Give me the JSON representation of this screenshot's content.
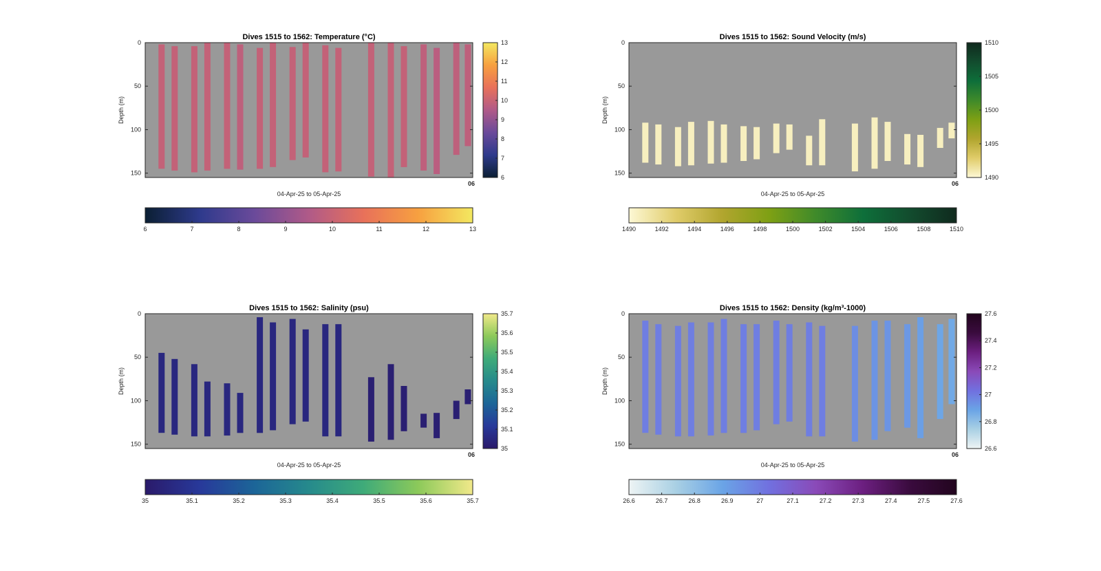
{
  "chart_data": [
    {
      "type": "heatmap",
      "title": "Dives 1515 to 1562: Temperature (°C)",
      "xlabel": "04-Apr-25 to 05-Apr-25",
      "ylabel": "Depth (m)",
      "x_tick_labels": [
        "06"
      ],
      "y_ticks": [
        0,
        50,
        100,
        150
      ],
      "ylim": [
        0,
        155
      ],
      "colorbar_right_ticks": [
        6,
        7,
        8,
        9,
        10,
        11,
        12,
        13
      ],
      "colorbar_bottom_ticks": [
        6,
        7,
        8,
        9,
        10,
        11,
        12,
        13
      ],
      "clim": [
        6,
        13
      ],
      "colormap": [
        "#0b1f33",
        "#2e3a8c",
        "#6a4a9a",
        "#b05a88",
        "#e8715a",
        "#f7a040",
        "#f3e860"
      ],
      "background_color": "#999999",
      "columns": [
        {
          "pos": 0.05,
          "top": 2,
          "bottom": 145,
          "value": 9.9
        },
        {
          "pos": 0.09,
          "top": 4,
          "bottom": 147,
          "value": 9.9
        },
        {
          "pos": 0.15,
          "top": 4,
          "bottom": 149,
          "value": 9.9
        },
        {
          "pos": 0.19,
          "top": 0,
          "bottom": 147,
          "value": 9.9
        },
        {
          "pos": 0.25,
          "top": 0,
          "bottom": 145,
          "value": 9.9
        },
        {
          "pos": 0.29,
          "top": 2,
          "bottom": 146,
          "value": 9.8
        },
        {
          "pos": 0.35,
          "top": 6,
          "bottom": 145,
          "value": 9.9
        },
        {
          "pos": 0.39,
          "top": 0,
          "bottom": 143,
          "value": 9.9
        },
        {
          "pos": 0.45,
          "top": 5,
          "bottom": 135,
          "value": 9.9
        },
        {
          "pos": 0.49,
          "top": 0,
          "bottom": 132,
          "value": 9.9
        },
        {
          "pos": 0.55,
          "top": 3,
          "bottom": 149,
          "value": 9.9
        },
        {
          "pos": 0.59,
          "top": 6,
          "bottom": 148,
          "value": 9.9
        },
        {
          "pos": 0.69,
          "top": 0,
          "bottom": 154,
          "value": 9.9
        },
        {
          "pos": 0.75,
          "top": 0,
          "bottom": 155,
          "value": 9.9
        },
        {
          "pos": 0.79,
          "top": 4,
          "bottom": 143,
          "value": 9.9
        },
        {
          "pos": 0.85,
          "top": 2,
          "bottom": 147,
          "value": 9.8
        },
        {
          "pos": 0.89,
          "top": 6,
          "bottom": 151,
          "value": 9.7
        },
        {
          "pos": 0.95,
          "top": 0,
          "bottom": 129,
          "value": 9.8
        },
        {
          "pos": 0.985,
          "top": 2,
          "bottom": 119,
          "value": 9.8
        }
      ]
    },
    {
      "type": "heatmap",
      "title": "Dives 1515 to 1562: Sound Velocity (m/s)",
      "xlabel": "04-Apr-25 to 05-Apr-25",
      "ylabel": "Depth (m)",
      "x_tick_labels": [
        "06"
      ],
      "y_ticks": [
        0,
        50,
        100,
        150
      ],
      "ylim": [
        0,
        155
      ],
      "colorbar_right_ticks": [
        1490,
        1495,
        1500,
        1505,
        1510
      ],
      "colorbar_bottom_ticks": [
        1490,
        1492,
        1494,
        1496,
        1498,
        1500,
        1502,
        1504,
        1506,
        1508,
        1510
      ],
      "clim": [
        1490,
        1510
      ],
      "colormap": [
        "#fdf8d5",
        "#e0cc6a",
        "#b1a52e",
        "#7ea014",
        "#3f8a2a",
        "#0e6f3a",
        "#124c2e",
        "#102a1e"
      ],
      "background_color": "#999999",
      "columns": [
        {
          "pos": 0.05,
          "top": 92,
          "bottom": 138,
          "value": 1490.6
        },
        {
          "pos": 0.09,
          "top": 94,
          "bottom": 140,
          "value": 1490.6
        },
        {
          "pos": 0.15,
          "top": 97,
          "bottom": 142,
          "value": 1490.6
        },
        {
          "pos": 0.19,
          "top": 91,
          "bottom": 141,
          "value": 1490.6
        },
        {
          "pos": 0.25,
          "top": 90,
          "bottom": 139,
          "value": 1490.6
        },
        {
          "pos": 0.29,
          "top": 94,
          "bottom": 138,
          "value": 1490.6
        },
        {
          "pos": 0.35,
          "top": 96,
          "bottom": 136,
          "value": 1490.6
        },
        {
          "pos": 0.39,
          "top": 97,
          "bottom": 134,
          "value": 1490.6
        },
        {
          "pos": 0.45,
          "top": 93,
          "bottom": 127,
          "value": 1490.6
        },
        {
          "pos": 0.49,
          "top": 94,
          "bottom": 123,
          "value": 1490.6
        },
        {
          "pos": 0.55,
          "top": 107,
          "bottom": 141,
          "value": 1490.6
        },
        {
          "pos": 0.59,
          "top": 88,
          "bottom": 141,
          "value": 1490.6
        },
        {
          "pos": 0.69,
          "top": 93,
          "bottom": 148,
          "value": 1490.6
        },
        {
          "pos": 0.75,
          "top": 86,
          "bottom": 145,
          "value": 1490.6
        },
        {
          "pos": 0.79,
          "top": 91,
          "bottom": 136,
          "value": 1490.6
        },
        {
          "pos": 0.85,
          "top": 105,
          "bottom": 140,
          "value": 1490.6
        },
        {
          "pos": 0.89,
          "top": 106,
          "bottom": 143,
          "value": 1490.6
        },
        {
          "pos": 0.95,
          "top": 98,
          "bottom": 121,
          "value": 1490.6
        },
        {
          "pos": 0.985,
          "top": 92,
          "bottom": 110,
          "value": 1490.6
        }
      ]
    },
    {
      "type": "heatmap",
      "title": "Dives 1515 to 1562: Salinity (psu)",
      "xlabel": "04-Apr-25 to 05-Apr-25",
      "ylabel": "Depth (m)",
      "x_tick_labels": [
        "06"
      ],
      "y_ticks": [
        0,
        50,
        100,
        150
      ],
      "ylim": [
        0,
        155
      ],
      "colorbar_right_ticks": [
        35,
        35.1,
        35.2,
        35.3,
        35.4,
        35.5,
        35.6,
        35.7
      ],
      "colorbar_bottom_ticks": [
        35,
        35.1,
        35.2,
        35.3,
        35.4,
        35.5,
        35.6,
        35.7
      ],
      "clim": [
        35,
        35.7
      ],
      "colormap": [
        "#2a1a6a",
        "#28399a",
        "#1c6598",
        "#268a8c",
        "#3fab79",
        "#8cc95a",
        "#f1e98a"
      ],
      "background_color": "#999999",
      "columns": [
        {
          "pos": 0.05,
          "top": 45,
          "bottom": 137,
          "value": 35.05
        },
        {
          "pos": 0.09,
          "top": 52,
          "bottom": 139,
          "value": 35.05
        },
        {
          "pos": 0.15,
          "top": 58,
          "bottom": 141,
          "value": 35.05
        },
        {
          "pos": 0.19,
          "top": 78,
          "bottom": 141,
          "value": 35.05
        },
        {
          "pos": 0.25,
          "top": 80,
          "bottom": 140,
          "value": 35.05
        },
        {
          "pos": 0.29,
          "top": 91,
          "bottom": 137,
          "value": 35.05
        },
        {
          "pos": 0.35,
          "top": 4,
          "bottom": 137,
          "value": 35.05
        },
        {
          "pos": 0.39,
          "top": 10,
          "bottom": 134,
          "value": 35.05
        },
        {
          "pos": 0.45,
          "top": 6,
          "bottom": 127,
          "value": 35.05
        },
        {
          "pos": 0.49,
          "top": 18,
          "bottom": 124,
          "value": 35.05
        },
        {
          "pos": 0.55,
          "top": 12,
          "bottom": 141,
          "value": 35.05
        },
        {
          "pos": 0.59,
          "top": 12,
          "bottom": 141,
          "value": 35.05
        },
        {
          "pos": 0.69,
          "top": 73,
          "bottom": 147,
          "value": 35.02
        },
        {
          "pos": 0.75,
          "top": 58,
          "bottom": 145,
          "value": 35.02
        },
        {
          "pos": 0.79,
          "top": 83,
          "bottom": 135,
          "value": 35.02
        },
        {
          "pos": 0.85,
          "top": 115,
          "bottom": 131,
          "value": 35.02
        },
        {
          "pos": 0.89,
          "top": 114,
          "bottom": 143,
          "value": 35.02
        },
        {
          "pos": 0.95,
          "top": 100,
          "bottom": 121,
          "value": 35.02
        },
        {
          "pos": 0.985,
          "top": 87,
          "bottom": 104,
          "value": 35.02
        }
      ]
    },
    {
      "type": "heatmap",
      "title": "Dives 1515 to 1562: Density (kg/m³-1000)",
      "xlabel": "04-Apr-25 to 05-Apr-25",
      "ylabel": "Depth (m)",
      "x_tick_labels": [
        "06"
      ],
      "y_ticks": [
        0,
        50,
        100,
        150
      ],
      "ylim": [
        0,
        155
      ],
      "colorbar_right_ticks": [
        26.6,
        26.8,
        27,
        27.2,
        27.4,
        27.6
      ],
      "colorbar_bottom_ticks": [
        26.6,
        26.7,
        26.8,
        26.9,
        27,
        27.1,
        27.2,
        27.3,
        27.4,
        27.5,
        27.6
      ],
      "clim": [
        26.6,
        27.6
      ],
      "colormap": [
        "#eef4f4",
        "#a9d0e4",
        "#6aa4e6",
        "#7170df",
        "#8a4ab8",
        "#6c1f80",
        "#3a0b3e",
        "#22051e"
      ],
      "background_color": "#999999",
      "columns": [
        {
          "pos": 0.05,
          "top": 8,
          "bottom": 137,
          "value": 26.99
        },
        {
          "pos": 0.09,
          "top": 12,
          "bottom": 139,
          "value": 26.99
        },
        {
          "pos": 0.15,
          "top": 14,
          "bottom": 141,
          "value": 26.99
        },
        {
          "pos": 0.19,
          "top": 10,
          "bottom": 141,
          "value": 26.99
        },
        {
          "pos": 0.25,
          "top": 10,
          "bottom": 140,
          "value": 26.99
        },
        {
          "pos": 0.29,
          "top": 6,
          "bottom": 137,
          "value": 26.99
        },
        {
          "pos": 0.35,
          "top": 12,
          "bottom": 137,
          "value": 26.99
        },
        {
          "pos": 0.39,
          "top": 12,
          "bottom": 134,
          "value": 26.99
        },
        {
          "pos": 0.45,
          "top": 8,
          "bottom": 127,
          "value": 26.99
        },
        {
          "pos": 0.49,
          "top": 12,
          "bottom": 124,
          "value": 26.99
        },
        {
          "pos": 0.55,
          "top": 10,
          "bottom": 141,
          "value": 26.99
        },
        {
          "pos": 0.59,
          "top": 14,
          "bottom": 141,
          "value": 26.99
        },
        {
          "pos": 0.69,
          "top": 14,
          "bottom": 147,
          "value": 26.95
        },
        {
          "pos": 0.75,
          "top": 8,
          "bottom": 145,
          "value": 26.93
        },
        {
          "pos": 0.79,
          "top": 8,
          "bottom": 135,
          "value": 26.93
        },
        {
          "pos": 0.85,
          "top": 12,
          "bottom": 131,
          "value": 26.92
        },
        {
          "pos": 0.89,
          "top": 4,
          "bottom": 143,
          "value": 26.9
        },
        {
          "pos": 0.95,
          "top": 12,
          "bottom": 121,
          "value": 26.88
        },
        {
          "pos": 0.985,
          "top": 6,
          "bottom": 104,
          "value": 26.87
        }
      ]
    }
  ]
}
